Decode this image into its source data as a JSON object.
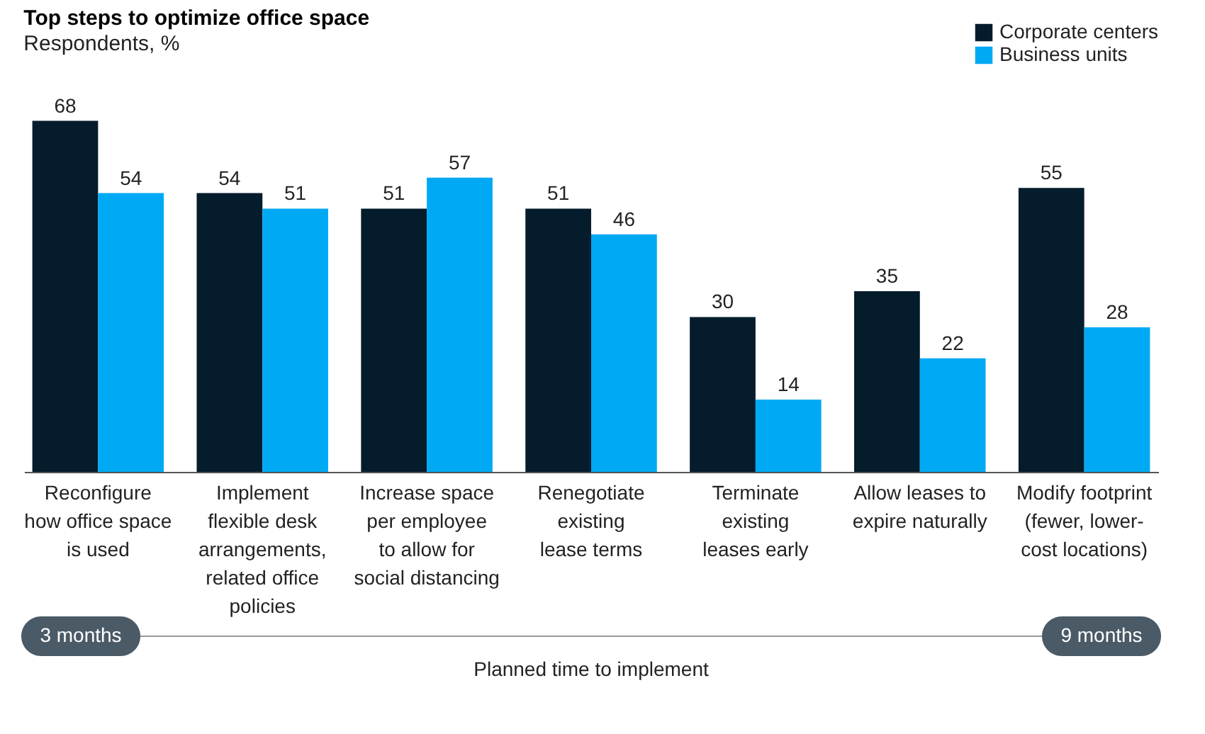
{
  "chart_data": {
    "type": "bar",
    "title": "Top steps to optimize office space",
    "subtitle": "Respondents, %",
    "categories": [
      "Reconfigure\nhow office space\nis used",
      "Implement\nflexible desk\narrangements,\nrelated office\npolicies",
      "Increase space\nper employee\nto allow for\nsocial distancing",
      "Renegotiate\nexisting\nlease terms",
      "Terminate\nexisting\nleases early",
      "Allow leases to\nexpire naturally",
      "Modify footprint\n(fewer, lower-\ncost locations)"
    ],
    "series": [
      {
        "name": "Corporate centers",
        "color": "#051c2c",
        "values": [
          68,
          54,
          51,
          51,
          30,
          35,
          55
        ]
      },
      {
        "name": "Business units",
        "color": "#00a9f4",
        "values": [
          54,
          51,
          57,
          46,
          14,
          22,
          28
        ]
      }
    ],
    "data_labels": true,
    "legend": "top right",
    "grid": false,
    "annotations": [
      "3 months",
      "9 months",
      "Planned time to implement"
    ]
  }
}
